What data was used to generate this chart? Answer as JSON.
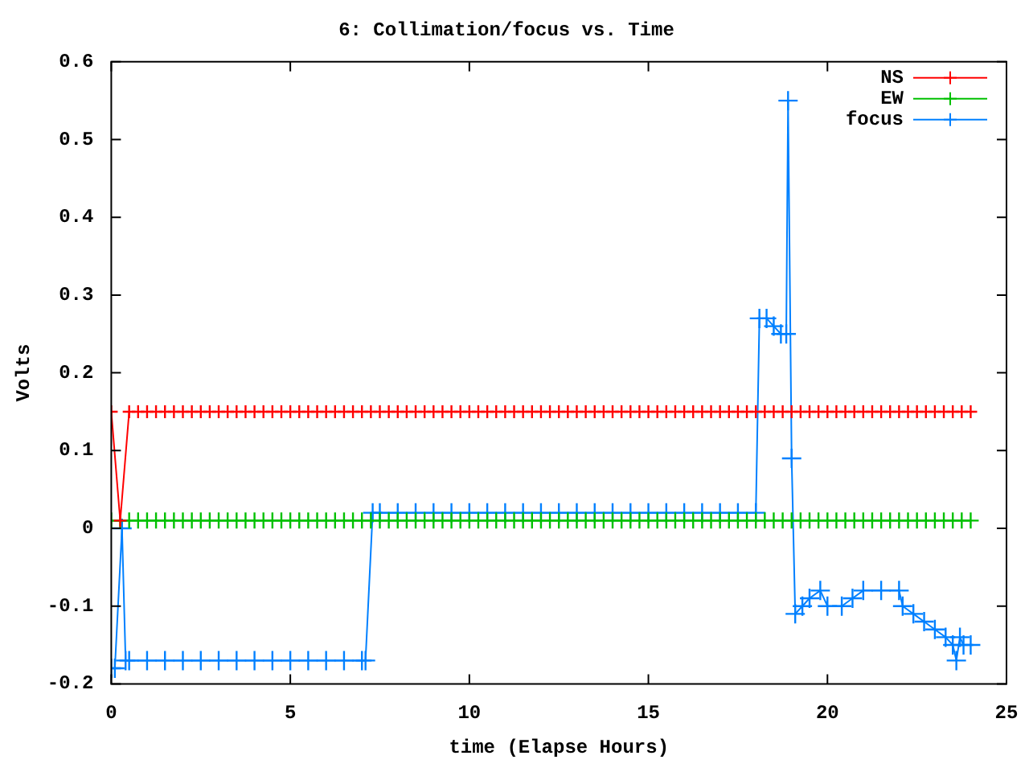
{
  "chart_data": {
    "type": "line",
    "title": "6: Collimation/focus vs. Time",
    "xlabel": "time (Elapse Hours)",
    "ylabel": "Volts",
    "x": [
      0,
      0.25,
      0.5,
      0.75,
      1,
      1.25,
      1.5,
      1.75,
      2,
      2.25,
      2.5,
      2.75,
      3,
      3.25,
      3.5,
      3.75,
      4,
      4.25,
      4.5,
      4.75,
      5,
      5.25,
      5.5,
      5.75,
      6,
      6.25,
      6.5,
      6.75,
      7,
      7.25,
      7.5,
      7.75,
      8,
      8.25,
      8.5,
      8.75,
      9,
      9.25,
      9.5,
      9.75,
      10,
      10.25,
      10.5,
      10.75,
      11,
      11.25,
      11.5,
      11.75,
      12,
      12.25,
      12.5,
      12.75,
      13,
      13.25,
      13.5,
      13.75,
      14,
      14.25,
      14.5,
      14.75,
      15,
      15.25,
      15.5,
      15.75,
      16,
      16.25,
      16.5,
      16.75,
      17,
      17.25,
      17.5,
      17.75,
      18,
      18.25,
      18.5,
      18.75,
      19,
      19.25,
      19.5,
      19.75,
      20,
      20.25,
      20.5,
      20.75,
      21,
      21.25,
      21.5,
      21.75,
      22,
      22.25,
      22.5,
      22.75,
      23,
      23.25,
      23.5,
      23.75,
      24
    ],
    "series": [
      {
        "name": "NS",
        "color": "#ff0000",
        "marker": "cross",
        "values": [
          0.15,
          0.01,
          0.15,
          0.15,
          0.15,
          0.15,
          0.15,
          0.15,
          0.15,
          0.15,
          0.15,
          0.15,
          0.15,
          0.15,
          0.15,
          0.15,
          0.15,
          0.15,
          0.15,
          0.15,
          0.15,
          0.15,
          0.15,
          0.15,
          0.15,
          0.15,
          0.15,
          0.15,
          0.15,
          0.15,
          0.15,
          0.15,
          0.15,
          0.15,
          0.15,
          0.15,
          0.15,
          0.15,
          0.15,
          0.15,
          0.15,
          0.15,
          0.15,
          0.15,
          0.15,
          0.15,
          0.15,
          0.15,
          0.15,
          0.15,
          0.15,
          0.15,
          0.15,
          0.15,
          0.15,
          0.15,
          0.15,
          0.15,
          0.15,
          0.15,
          0.15,
          0.15,
          0.15,
          0.15,
          0.15,
          0.15,
          0.15,
          0.15,
          0.15,
          0.15,
          0.15,
          0.15,
          0.15,
          0.15,
          0.15,
          0.15,
          0.15,
          0.15,
          0.15,
          0.15,
          0.15,
          0.15,
          0.15,
          0.15,
          0.15,
          0.15,
          0.15,
          0.15,
          0.15,
          0.15,
          0.15,
          0.15,
          0.15,
          0.15,
          0.15,
          0.15,
          0.15
        ]
      },
      {
        "name": "EW",
        "color": "#00c000",
        "marker": "cross",
        "values": [
          0.01,
          0.01,
          0.01,
          0.01,
          0.01,
          0.01,
          0.01,
          0.01,
          0.01,
          0.01,
          0.01,
          0.01,
          0.01,
          0.01,
          0.01,
          0.01,
          0.01,
          0.01,
          0.01,
          0.01,
          0.01,
          0.01,
          0.01,
          0.01,
          0.01,
          0.01,
          0.01,
          0.01,
          0.01,
          0.01,
          0.01,
          0.01,
          0.01,
          0.01,
          0.01,
          0.01,
          0.01,
          0.01,
          0.01,
          0.01,
          0.01,
          0.01,
          0.01,
          0.01,
          0.01,
          0.01,
          0.01,
          0.01,
          0.01,
          0.01,
          0.01,
          0.01,
          0.01,
          0.01,
          0.01,
          0.01,
          0.01,
          0.01,
          0.01,
          0.01,
          0.01,
          0.01,
          0.01,
          0.01,
          0.01,
          0.01,
          0.01,
          0.01,
          0.01,
          0.01,
          0.01,
          0.01,
          0.01,
          0.01,
          0.01,
          0.01,
          0.01,
          0.01,
          0.01,
          0.01,
          0.01,
          0.01,
          0.01,
          0.01,
          0.01,
          0.01,
          0.01,
          0.01,
          0.01,
          0.01,
          0.01,
          0.01,
          0.01,
          0.01,
          0.01,
          0.01,
          0.01
        ]
      },
      {
        "name": "focus",
        "color": "#0080ff",
        "marker": "cross",
        "x": [
          0,
          0.1,
          0.3,
          0.4,
          0.5,
          1,
          1.5,
          2,
          2.5,
          3,
          3.5,
          4,
          4.5,
          5,
          5.5,
          6,
          6.5,
          7,
          7.1,
          7.3,
          7.5,
          8,
          8.5,
          9,
          9.5,
          10,
          10.5,
          11,
          11.5,
          12,
          12.5,
          13,
          13.5,
          14,
          14.5,
          15,
          15.5,
          16,
          16.5,
          17,
          17.5,
          18,
          18.1,
          18.3,
          18.5,
          18.7,
          18.85,
          18.9,
          19,
          19.1,
          19.3,
          19.5,
          19.8,
          20,
          20.4,
          20.7,
          21,
          21.5,
          22,
          22.1,
          22.4,
          22.7,
          23,
          23.3,
          23.5,
          23.6,
          23.7,
          23.8,
          24
        ],
        "values": [
          -0.18,
          -0.18,
          0,
          -0.17,
          -0.17,
          -0.17,
          -0.17,
          -0.17,
          -0.17,
          -0.17,
          -0.17,
          -0.17,
          -0.17,
          -0.17,
          -0.17,
          -0.17,
          -0.17,
          -0.17,
          -0.17,
          0.02,
          0.02,
          0.02,
          0.02,
          0.02,
          0.02,
          0.02,
          0.02,
          0.02,
          0.02,
          0.02,
          0.02,
          0.02,
          0.02,
          0.02,
          0.02,
          0.02,
          0.02,
          0.02,
          0.02,
          0.02,
          0.02,
          0.02,
          0.27,
          0.27,
          0.26,
          0.25,
          0.25,
          0.55,
          0.09,
          -0.11,
          -0.1,
          -0.09,
          -0.08,
          -0.1,
          -0.1,
          -0.09,
          -0.08,
          -0.08,
          -0.08,
          -0.1,
          -0.11,
          -0.12,
          -0.13,
          -0.14,
          -0.15,
          -0.17,
          -0.14,
          -0.15,
          -0.15
        ]
      }
    ],
    "xlim": [
      0,
      25
    ],
    "xticks": [
      0,
      5,
      10,
      15,
      20,
      25
    ],
    "ylim": [
      -0.2,
      0.6
    ],
    "yticks": [
      -0.2,
      -0.1,
      0,
      0.1,
      0.2,
      0.3,
      0.4,
      0.5,
      0.6
    ],
    "grid": false,
    "legend": "top right"
  }
}
